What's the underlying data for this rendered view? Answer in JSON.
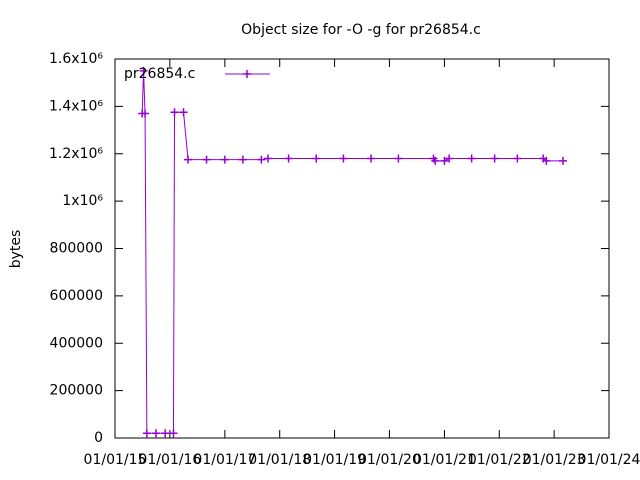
{
  "chart_data": {
    "type": "line",
    "title": "Object size for -O -g for pr26854.c",
    "ylabel": "bytes",
    "x": [
      "2015-07-01",
      "2015-07-10",
      "2015-07-20",
      "2015-08-01",
      "2015-10-01",
      "2015-12-01",
      "2016-01-25",
      "2016-02-01",
      "2016-04-01",
      "2016-05-01",
      "2016-09-01",
      "2017-01-01",
      "2017-05-01",
      "2017-09-01",
      "2017-10-15",
      "2018-03-01",
      "2018-09-01",
      "2019-03-01",
      "2019-09-01",
      "2020-03-01",
      "2020-10-20",
      "2020-11-01",
      "2021-01-01",
      "2021-02-01",
      "2021-07-01",
      "2021-12-01",
      "2022-05-01",
      "2022-10-20",
      "2022-11-10",
      "2023-03-01"
    ],
    "series": [
      {
        "name": "pr26854.c",
        "color": "#9400d3",
        "values": [
          1370000,
          1550000,
          1370000,
          20000,
          20000,
          20000,
          20000,
          1375000,
          1375000,
          1175000,
          1175000,
          1175000,
          1175000,
          1175000,
          1180000,
          1180000,
          1180000,
          1180000,
          1180000,
          1180000,
          1180000,
          1170000,
          1170000,
          1180000,
          1180000,
          1180000,
          1180000,
          1180000,
          1170000,
          1170000
        ]
      }
    ],
    "xlim": [
      "2015-01-01",
      "2024-01-01"
    ],
    "xticks": [
      {
        "value": "2015-01-01",
        "label": "01/01/15"
      },
      {
        "value": "2016-01-01",
        "label": "01/01/16"
      },
      {
        "value": "2017-01-01",
        "label": "01/01/17"
      },
      {
        "value": "2018-01-01",
        "label": "01/01/18"
      },
      {
        "value": "2019-01-01",
        "label": "01/01/19"
      },
      {
        "value": "2020-01-01",
        "label": "01/01/20"
      },
      {
        "value": "2021-01-01",
        "label": "01/01/21"
      },
      {
        "value": "2022-01-01",
        "label": "01/01/22"
      },
      {
        "value": "2023-01-01",
        "label": "01/01/23"
      },
      {
        "value": "2024-01-01",
        "label": "01/01/24"
      }
    ],
    "ylim": [
      0,
      1600000
    ],
    "yticks": [
      0,
      200000,
      400000,
      600000,
      800000,
      {
        "value": 1000000,
        "label": "1x10⁶"
      },
      {
        "value": 1200000,
        "label": "1.2x10⁶"
      },
      {
        "value": 1400000,
        "label": "1.4x10⁶"
      },
      {
        "value": 1600000,
        "label": "1.6x10⁶"
      }
    ],
    "grid": false,
    "legend": "top-left"
  }
}
